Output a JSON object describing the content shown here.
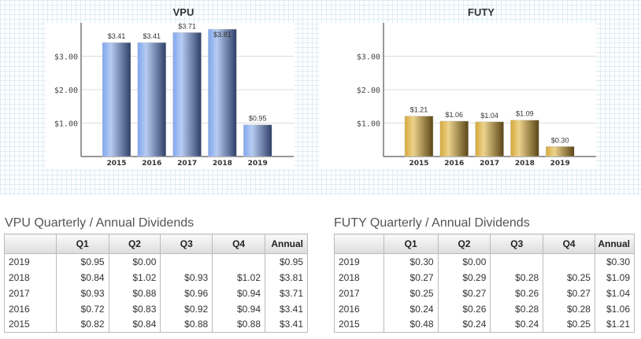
{
  "chart_data": [
    {
      "type": "bar",
      "title": "VPU",
      "categories": [
        "2015",
        "2016",
        "2017",
        "2018",
        "2019"
      ],
      "values": [
        3.41,
        3.41,
        3.71,
        3.81,
        0.95
      ],
      "labels": [
        "$3.41",
        "$3.41",
        "$3.71",
        "$3.81",
        "$0.95"
      ],
      "yticks": [
        "$1.00",
        "$2.00",
        "$3.00"
      ],
      "ylim": [
        0,
        4
      ],
      "colors": [
        "#7fa6ee",
        "#b7ccf2",
        "#2e3f66"
      ]
    },
    {
      "type": "bar",
      "title": "FUTY",
      "categories": [
        "2015",
        "2016",
        "2017",
        "2018",
        "2019"
      ],
      "values": [
        1.21,
        1.06,
        1.04,
        1.09,
        0.3
      ],
      "labels": [
        "$1.21",
        "$1.06",
        "$1.04",
        "$1.09",
        "$0.30"
      ],
      "yticks": [
        "$1.00",
        "$2.00",
        "$3.00"
      ],
      "ylim": [
        0,
        4
      ],
      "colors": [
        "#d4a93a",
        "#ecd28c",
        "#5a4515"
      ]
    }
  ],
  "tables": [
    {
      "title": "VPU Quarterly / Annual Dividends",
      "headers": [
        "",
        "Q1",
        "Q2",
        "Q3",
        "Q4",
        "Annual"
      ],
      "rows": [
        [
          "2019",
          "$0.95",
          "$0.00",
          "",
          "",
          "$0.95"
        ],
        [
          "2018",
          "$0.84",
          "$1.02",
          "$0.93",
          "$1.02",
          "$3.81"
        ],
        [
          "2017",
          "$0.93",
          "$0.88",
          "$0.96",
          "$0.94",
          "$3.71"
        ],
        [
          "2016",
          "$0.72",
          "$0.83",
          "$0.92",
          "$0.94",
          "$3.41"
        ],
        [
          "2015",
          "$0.82",
          "$0.84",
          "$0.88",
          "$0.88",
          "$3.41"
        ]
      ]
    },
    {
      "title": "FUTY Quarterly / Annual Dividends",
      "headers": [
        "",
        "Q1",
        "Q2",
        "Q3",
        "Q4",
        "Annual"
      ],
      "rows": [
        [
          "2019",
          "$0.30",
          "$0.00",
          "",
          "",
          "$0.30"
        ],
        [
          "2018",
          "$0.27",
          "$0.29",
          "$0.28",
          "$0.25",
          "$1.09"
        ],
        [
          "2017",
          "$0.25",
          "$0.27",
          "$0.26",
          "$0.27",
          "$1.04"
        ],
        [
          "2016",
          "$0.24",
          "$0.26",
          "$0.28",
          "$0.28",
          "$1.06"
        ],
        [
          "2015",
          "$0.48",
          "$0.24",
          "$0.24",
          "$0.25",
          "$1.21"
        ]
      ]
    }
  ]
}
